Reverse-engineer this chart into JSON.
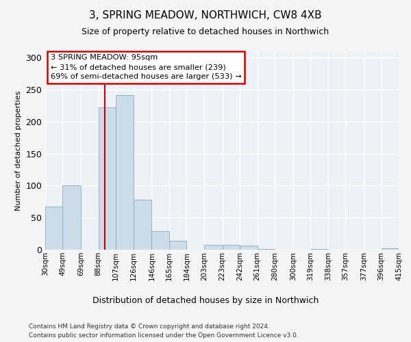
{
  "title": "3, SPRING MEADOW, NORTHWICH, CW8 4XB",
  "subtitle": "Size of property relative to detached houses in Northwich",
  "xlabel": "Distribution of detached houses by size in Northwich",
  "ylabel": "Number of detached properties",
  "bar_color": "#ccdce8",
  "bar_edge_color": "#8aaac0",
  "background_color": "#eef2f6",
  "grid_color": "#ffffff",
  "fig_bg_color": "#f5f5f5",
  "vline_x": 95,
  "vline_color": "#cc0000",
  "bin_edges": [
    30,
    49,
    69,
    88,
    107,
    126,
    146,
    165,
    184,
    203,
    223,
    242,
    261,
    280,
    300,
    319,
    338,
    357,
    377,
    396,
    415
  ],
  "bar_heights": [
    67,
    100,
    0,
    222,
    242,
    78,
    29,
    14,
    0,
    8,
    8,
    6,
    1,
    0,
    0,
    1,
    0,
    0,
    0,
    2
  ],
  "tick_labels": [
    "30sqm",
    "49sqm",
    "69sqm",
    "88sqm",
    "107sqm",
    "126sqm",
    "146sqm",
    "165sqm",
    "184sqm",
    "203sqm",
    "223sqm",
    "242sqm",
    "261sqm",
    "280sqm",
    "300sqm",
    "319sqm",
    "338sqm",
    "357sqm",
    "377sqm",
    "396sqm",
    "415sqm"
  ],
  "ylim": [
    0,
    310
  ],
  "yticks": [
    0,
    50,
    100,
    150,
    200,
    250,
    300
  ],
  "annotation_box_text": "3 SPRING MEADOW: 95sqm\n← 31% of detached houses are smaller (239)\n69% of semi-detached houses are larger (533) →",
  "annotation_box_color": "#cc0000",
  "title_fontsize": 11,
  "subtitle_fontsize": 9,
  "ylabel_fontsize": 8,
  "xlabel_fontsize": 9,
  "tick_fontsize": 7.5,
  "footer_line1": "Contains HM Land Registry data © Crown copyright and database right 2024.",
  "footer_line2": "Contains public sector information licensed under the Open Government Licence v3.0.",
  "footer_fontsize": 6.5
}
